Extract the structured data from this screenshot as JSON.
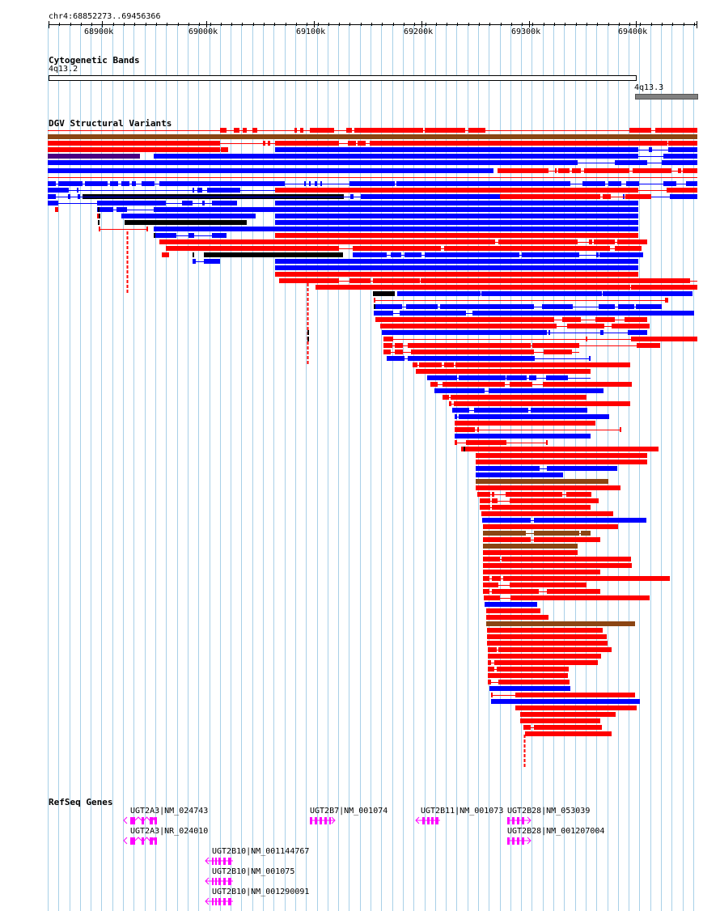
{
  "location": "chr4:68852273..69456366",
  "ruler": {
    "ticks": [
      "68900k",
      "69000k",
      "69100k",
      "69200k",
      "69300k",
      "69400k"
    ]
  },
  "tracks": {
    "cytoband": {
      "title": "Cytogenetic Bands",
      "bands": [
        {
          "name": "4q13.2",
          "color": "#ffffff"
        },
        {
          "name": "4q13.3",
          "color": "#808080"
        }
      ]
    },
    "dgv": {
      "title": "DGV Structural Variants",
      "legend_colors": {
        "gain": "#ff0000",
        "loss": "#0000ff",
        "both": "#8b4513",
        "inversion": "#000000",
        "complex": "#4b0082"
      }
    },
    "refseq": {
      "title": "RefSeq Genes",
      "color": "#ff00ff",
      "genes": [
        {
          "label": "UGT2A3|NM_024743"
        },
        {
          "label": "UGT2A3|NR_024010"
        },
        {
          "label": "UGT2B10|NM_001144767"
        },
        {
          "label": "UGT2B10|NM_001075"
        },
        {
          "label": "UGT2B10|NM_001290091"
        },
        {
          "label": "UGT2B7|NM_001074"
        },
        {
          "label": "UGT2B11|NM_001073"
        },
        {
          "label": "UGT2B28|NM_053039"
        },
        {
          "label": "UGT2B28|NM_001207004"
        }
      ]
    }
  }
}
